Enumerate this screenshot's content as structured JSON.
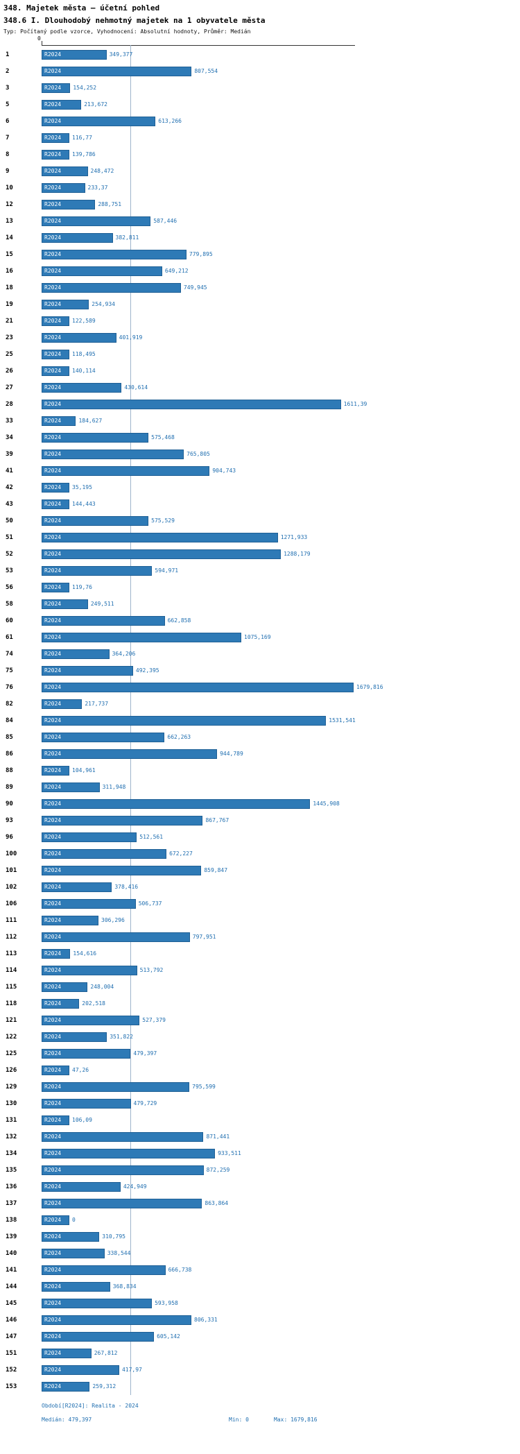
{
  "header": {
    "title": "348. Majetek města – účetní pohled",
    "subtitle": "348.6 I. Dlouhodobý nehmotný majetek na 1 obyvatele města",
    "meta": "Typ: Počítaný podle vzorce, Vyhodnocení: Absolutní hodnoty, Průměr: Medián"
  },
  "axis": {
    "zero_label": "0"
  },
  "series_label": "R2024",
  "footer": {
    "period": "Období[R2024]: Realita - 2024",
    "median": "Medián: 479,397",
    "min": "Min: 0",
    "max": "Max: 1679,816"
  },
  "colors": {
    "bar_fill": "#2e7ab6",
    "bar_border": "#1e5f95",
    "value_text": "#1f6eb0",
    "median_line": "#9db4cb"
  },
  "chart_data": {
    "type": "bar",
    "orientation": "horizontal",
    "title": "348.6 I. Dlouhodobý nehmotný majetek na 1 obyvatele města",
    "series_name": "R2024",
    "xlim": [
      0,
      1679.816
    ],
    "median": 479.397,
    "min": 0,
    "max": 1679.816,
    "rows": [
      {
        "cat": "1",
        "label": "349,377",
        "value": 349.377
      },
      {
        "cat": "2",
        "label": "807,554",
        "value": 807.554
      },
      {
        "cat": "3",
        "label": "154,252",
        "value": 154.252
      },
      {
        "cat": "5",
        "label": "213,672",
        "value": 213.672
      },
      {
        "cat": "6",
        "label": "613,266",
        "value": 613.266
      },
      {
        "cat": "7",
        "label": "116,77",
        "value": 116.77
      },
      {
        "cat": "8",
        "label": "139,786",
        "value": 139.786
      },
      {
        "cat": "9",
        "label": "248,472",
        "value": 248.472
      },
      {
        "cat": "10",
        "label": "233,37",
        "value": 233.37
      },
      {
        "cat": "12",
        "label": "288,751",
        "value": 288.751
      },
      {
        "cat": "13",
        "label": "587,446",
        "value": 587.446
      },
      {
        "cat": "14",
        "label": "382,811",
        "value": 382.811
      },
      {
        "cat": "15",
        "label": "779,895",
        "value": 779.895
      },
      {
        "cat": "16",
        "label": "649,212",
        "value": 649.212
      },
      {
        "cat": "18",
        "label": "749,945",
        "value": 749.945
      },
      {
        "cat": "19",
        "label": "254,934",
        "value": 254.934
      },
      {
        "cat": "21",
        "label": "122,589",
        "value": 122.589
      },
      {
        "cat": "23",
        "label": "401,919",
        "value": 401.919
      },
      {
        "cat": "25",
        "label": "118,495",
        "value": 118.495
      },
      {
        "cat": "26",
        "label": "140,114",
        "value": 140.114
      },
      {
        "cat": "27",
        "label": "430,614",
        "value": 430.614
      },
      {
        "cat": "28",
        "label": "1611,39",
        "value": 1611.39
      },
      {
        "cat": "33",
        "label": "184,627",
        "value": 184.627
      },
      {
        "cat": "34",
        "label": "575,468",
        "value": 575.468
      },
      {
        "cat": "39",
        "label": "765,805",
        "value": 765.805
      },
      {
        "cat": "41",
        "label": "904,743",
        "value": 904.743
      },
      {
        "cat": "42",
        "label": "35,195",
        "value": 35.195
      },
      {
        "cat": "43",
        "label": "144,443",
        "value": 144.443
      },
      {
        "cat": "50",
        "label": "575,529",
        "value": 575.529
      },
      {
        "cat": "51",
        "label": "1271,933",
        "value": 1271.933
      },
      {
        "cat": "52",
        "label": "1288,179",
        "value": 1288.179
      },
      {
        "cat": "53",
        "label": "594,971",
        "value": 594.971
      },
      {
        "cat": "56",
        "label": "119,76",
        "value": 119.76
      },
      {
        "cat": "58",
        "label": "249,511",
        "value": 249.511
      },
      {
        "cat": "60",
        "label": "662,858",
        "value": 662.858
      },
      {
        "cat": "61",
        "label": "1075,169",
        "value": 1075.169
      },
      {
        "cat": "74",
        "label": "364,206",
        "value": 364.206
      },
      {
        "cat": "75",
        "label": "492,395",
        "value": 492.395
      },
      {
        "cat": "76",
        "label": "1679,816",
        "value": 1679.816
      },
      {
        "cat": "82",
        "label": "217,737",
        "value": 217.737
      },
      {
        "cat": "84",
        "label": "1531,541",
        "value": 1531.541
      },
      {
        "cat": "85",
        "label": "662,263",
        "value": 662.263
      },
      {
        "cat": "86",
        "label": "944,789",
        "value": 944.789
      },
      {
        "cat": "88",
        "label": "104,961",
        "value": 104.961
      },
      {
        "cat": "89",
        "label": "311,948",
        "value": 311.948
      },
      {
        "cat": "90",
        "label": "1445,908",
        "value": 1445.908
      },
      {
        "cat": "93",
        "label": "867,767",
        "value": 867.767
      },
      {
        "cat": "96",
        "label": "512,561",
        "value": 512.561
      },
      {
        "cat": "100",
        "label": "672,227",
        "value": 672.227
      },
      {
        "cat": "101",
        "label": "859,847",
        "value": 859.847
      },
      {
        "cat": "102",
        "label": "378,416",
        "value": 378.416
      },
      {
        "cat": "106",
        "label": "506,737",
        "value": 506.737
      },
      {
        "cat": "111",
        "label": "306,296",
        "value": 306.296
      },
      {
        "cat": "112",
        "label": "797,951",
        "value": 797.951
      },
      {
        "cat": "113",
        "label": "154,616",
        "value": 154.616
      },
      {
        "cat": "114",
        "label": "513,792",
        "value": 513.792
      },
      {
        "cat": "115",
        "label": "248,004",
        "value": 248.004
      },
      {
        "cat": "118",
        "label": "202,518",
        "value": 202.518
      },
      {
        "cat": "121",
        "label": "527,379",
        "value": 527.379
      },
      {
        "cat": "122",
        "label": "351,822",
        "value": 351.822
      },
      {
        "cat": "125",
        "label": "479,397",
        "value": 479.397
      },
      {
        "cat": "126",
        "label": "47,26",
        "value": 47.26
      },
      {
        "cat": "129",
        "label": "795,599",
        "value": 795.599
      },
      {
        "cat": "130",
        "label": "479,729",
        "value": 479.729
      },
      {
        "cat": "131",
        "label": "106,09",
        "value": 106.09
      },
      {
        "cat": "132",
        "label": "871,441",
        "value": 871.441
      },
      {
        "cat": "134",
        "label": "933,511",
        "value": 933.511
      },
      {
        "cat": "135",
        "label": "872,259",
        "value": 872.259
      },
      {
        "cat": "136",
        "label": "424,949",
        "value": 424.949
      },
      {
        "cat": "137",
        "label": "863,864",
        "value": 863.864
      },
      {
        "cat": "138",
        "label": "0",
        "value": 0
      },
      {
        "cat": "139",
        "label": "310,795",
        "value": 310.795
      },
      {
        "cat": "140",
        "label": "338,544",
        "value": 338.544
      },
      {
        "cat": "141",
        "label": "666,738",
        "value": 666.738
      },
      {
        "cat": "144",
        "label": "368,834",
        "value": 368.834
      },
      {
        "cat": "145",
        "label": "593,958",
        "value": 593.958
      },
      {
        "cat": "146",
        "label": "806,331",
        "value": 806.331
      },
      {
        "cat": "147",
        "label": "605,142",
        "value": 605.142
      },
      {
        "cat": "151",
        "label": "267,812",
        "value": 267.812
      },
      {
        "cat": "152",
        "label": "417,97",
        "value": 417.97
      },
      {
        "cat": "153",
        "label": "259,312",
        "value": 259.312
      }
    ]
  }
}
